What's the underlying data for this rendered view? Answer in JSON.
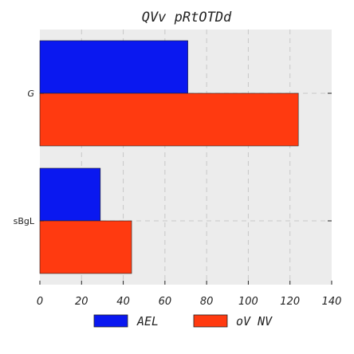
{
  "chart_data": {
    "type": "bar",
    "orientation": "horizontal",
    "title": "QVv pRtOTDd",
    "categories": [
      "G",
      "sBgL"
    ],
    "series": [
      {
        "name": "AEL",
        "values": [
          71,
          29
        ],
        "color": "#0a18f0"
      },
      {
        "name": "oV NV",
        "values": [
          124,
          44
        ],
        "color": "#ff3a10"
      }
    ],
    "xlim": [
      0,
      140
    ],
    "xticks": [
      0,
      20,
      40,
      60,
      80,
      100,
      120,
      140
    ],
    "xlabel": "",
    "ylabel": "",
    "grid": true,
    "legend_position": "bottom"
  }
}
